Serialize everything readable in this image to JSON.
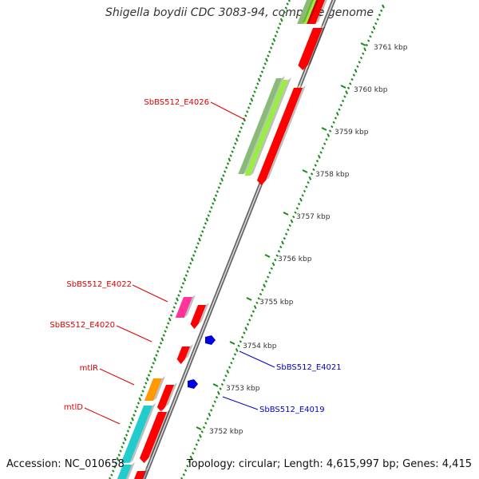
{
  "title": "Shigella boydii CDC 3083-94, complete genome",
  "footer": {
    "accession": "Accession: NC_010658",
    "summary": "Topology: circular; Length: 4,615,997 bp; Genes: 4,415"
  },
  "colors": {
    "backbone": "#888888",
    "tick": "#1a8a1a",
    "gene_red": "#ff0000",
    "gene_blue": "#0000dd",
    "gene_magenta": "#ff3399",
    "gene_orange": "#ff9900",
    "gene_cyan": "#22cccc",
    "gene_lightgreen": "#99ee44",
    "gene_sage": "#88bb77",
    "label_red": "#dd0000",
    "label_blue": "#0000cc"
  },
  "scale_labels": [
    "3761 kbp",
    "3760 kbp",
    "3759 kbp",
    "3758 kbp",
    "3757 kbp",
    "3756 kbp",
    "3755 kbp",
    "3754 kbp",
    "3753 kbp",
    "3752 kbp"
  ],
  "gene_labels": [
    {
      "text": "SbBS512_E4026",
      "strand": "left"
    },
    {
      "text": "SbBS512_E4022",
      "strand": "left"
    },
    {
      "text": "SbBS512_E4020",
      "strand": "left"
    },
    {
      "text": "mtlR",
      "strand": "left"
    },
    {
      "text": "mtlD",
      "strand": "left"
    },
    {
      "text": "SbBS512_E4021",
      "strand": "right"
    },
    {
      "text": "SbBS512_E4019",
      "strand": "right"
    }
  ]
}
